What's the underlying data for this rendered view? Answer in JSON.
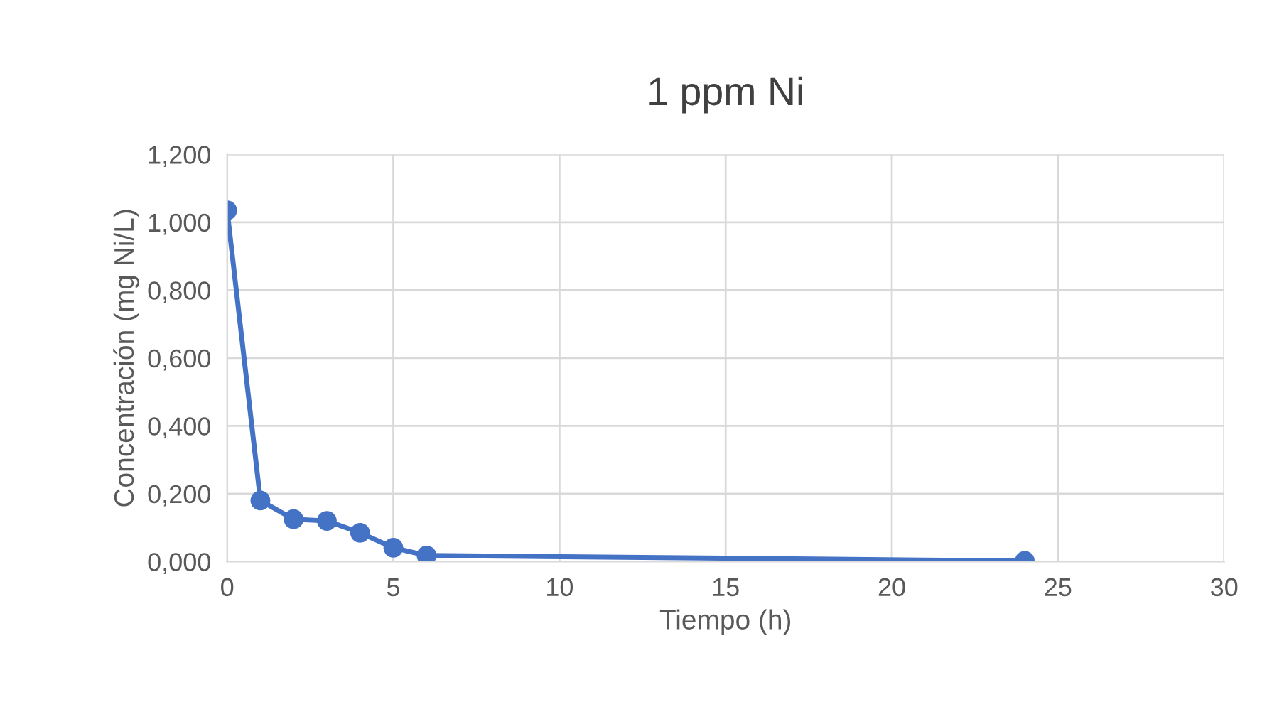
{
  "chart_data": {
    "type": "line",
    "title": "1 ppm Ni",
    "xlabel": "Tiempo (h)",
    "ylabel": "Concentración (mg Ni/L)",
    "x": [
      0,
      1,
      2,
      3,
      4,
      5,
      6,
      24
    ],
    "series": [
      {
        "color": "#4472c4",
        "values": [
          1.035,
          0.18,
          0.125,
          0.12,
          0.085,
          0.041,
          0.018,
          0.002
        ]
      }
    ],
    "xlim": [
      0,
      30
    ],
    "xticks": [
      0,
      5,
      10,
      15,
      20,
      25,
      30
    ],
    "ylim": [
      0,
      1.2
    ],
    "yticks": [
      {
        "value": 0,
        "label": "0,000"
      },
      {
        "value": 0.2,
        "label": "0,200"
      },
      {
        "value": 0.4,
        "label": "0,400"
      },
      {
        "value": 0.6,
        "label": "0,600"
      },
      {
        "value": 0.8,
        "label": "0,800"
      },
      {
        "value": 1.0,
        "label": "1,000"
      },
      {
        "value": 1.2,
        "label": "1,200"
      }
    ],
    "grid": true,
    "marker": "circle",
    "line_style": "solid"
  }
}
